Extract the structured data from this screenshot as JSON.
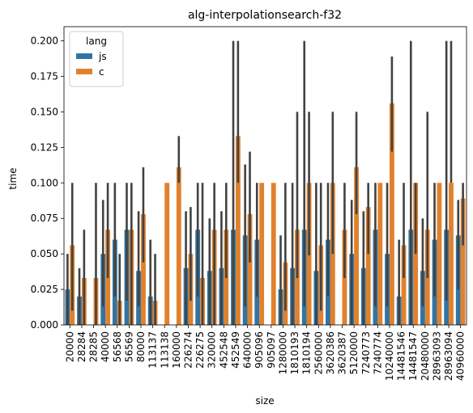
{
  "chart_data": {
    "type": "bar",
    "title": "alg-interpolationsearch-f32",
    "xlabel": "size",
    "ylabel": "time",
    "ylim": [
      0,
      0.21
    ],
    "yticks": [
      0.0,
      0.025,
      0.05,
      0.075,
      0.1,
      0.125,
      0.15,
      0.175,
      0.2
    ],
    "ytick_labels": [
      "0.000",
      "0.025",
      "0.050",
      "0.075",
      "0.100",
      "0.125",
      "0.150",
      "0.175",
      "0.200"
    ],
    "grid": false,
    "legend": {
      "title": "lang",
      "position": "top-left"
    },
    "categories": [
      "20000",
      "28284",
      "28285",
      "40000",
      "56568",
      "56569",
      "80000",
      "113137",
      "113138",
      "160000",
      "226274",
      "226275",
      "320000",
      "452548",
      "452549",
      "640000",
      "905096",
      "905097",
      "1280000",
      "1810193",
      "1810194",
      "2560000",
      "3620386",
      "3620387",
      "5120000",
      "7240773",
      "7240774",
      "10240000",
      "14481546",
      "14481547",
      "20480000",
      "28963093",
      "28963094",
      "40960000"
    ],
    "series": [
      {
        "name": "js",
        "color": "#3274a1",
        "values": [
          0.025,
          0.02,
          0,
          0.05,
          0.06,
          0.067,
          0.038,
          0.02,
          0,
          0,
          0.04,
          0.067,
          0.038,
          0.04,
          0.067,
          0.063,
          0.06,
          0,
          0.025,
          0.04,
          0.067,
          0.038,
          0.06,
          0,
          0.05,
          0.04,
          0.067,
          0.05,
          0.02,
          0.067,
          0.038,
          0.06,
          0.067,
          0.063
        ],
        "err_low": [
          0,
          0,
          0,
          0.013,
          0.02,
          0.017,
          0.013,
          0,
          0,
          0,
          0,
          0.02,
          0,
          0,
          0,
          0.013,
          0.02,
          0,
          0,
          0,
          0.013,
          0,
          0.02,
          0,
          0,
          0,
          0.013,
          0.013,
          0,
          0,
          0.013,
          0.02,
          0.017,
          0.025
        ],
        "err_high": [
          0.05,
          0.04,
          0,
          0.088,
          0.1,
          0.1,
          0.08,
          0.06,
          0,
          0,
          0.08,
          0.1,
          0.075,
          0.08,
          0.2,
          0.113,
          0.1,
          0,
          0.063,
          0.1,
          0.2,
          0.1,
          0.1,
          0,
          0.088,
          0.08,
          0.1,
          0.1,
          0.06,
          0.2,
          0.075,
          0.1,
          0.2,
          0.088
        ]
      },
      {
        "name": "c",
        "color": "#e1812c",
        "values": [
          0.056,
          0.033,
          0.033,
          0.067,
          0.017,
          0.067,
          0.078,
          0.017,
          0.1,
          0.111,
          0.05,
          0.033,
          0.067,
          0.067,
          0.133,
          0.078,
          0.1,
          0.1,
          0.044,
          0.067,
          0.1,
          0.056,
          0.1,
          0.067,
          0.111,
          0.083,
          0.1,
          0.156,
          0.056,
          0.1,
          0.067,
          0.1,
          0.1,
          0.089
        ],
        "err_low": [
          0.01,
          0,
          0,
          0.033,
          0,
          0,
          0.044,
          0,
          0.1,
          0.1,
          0.017,
          0,
          0,
          0.033,
          0.1,
          0.044,
          0.1,
          0.1,
          0.01,
          0.033,
          0.049,
          0.01,
          0.05,
          0.033,
          0.078,
          0.05,
          0.1,
          0.122,
          0.033,
          0.05,
          0.033,
          0.1,
          0.1,
          0.056
        ],
        "err_high": [
          0.1,
          0.067,
          0.1,
          0.1,
          0.05,
          0.1,
          0.111,
          0.05,
          0.1,
          0.133,
          0.083,
          0.1,
          0.1,
          0.1,
          0.2,
          0.122,
          0.1,
          0.1,
          0.1,
          0.15,
          0.15,
          0.1,
          0.15,
          0.1,
          0.15,
          0.1,
          0.1,
          0.189,
          0.1,
          0.1,
          0.15,
          0.1,
          0.2,
          0.1
        ]
      }
    ]
  }
}
